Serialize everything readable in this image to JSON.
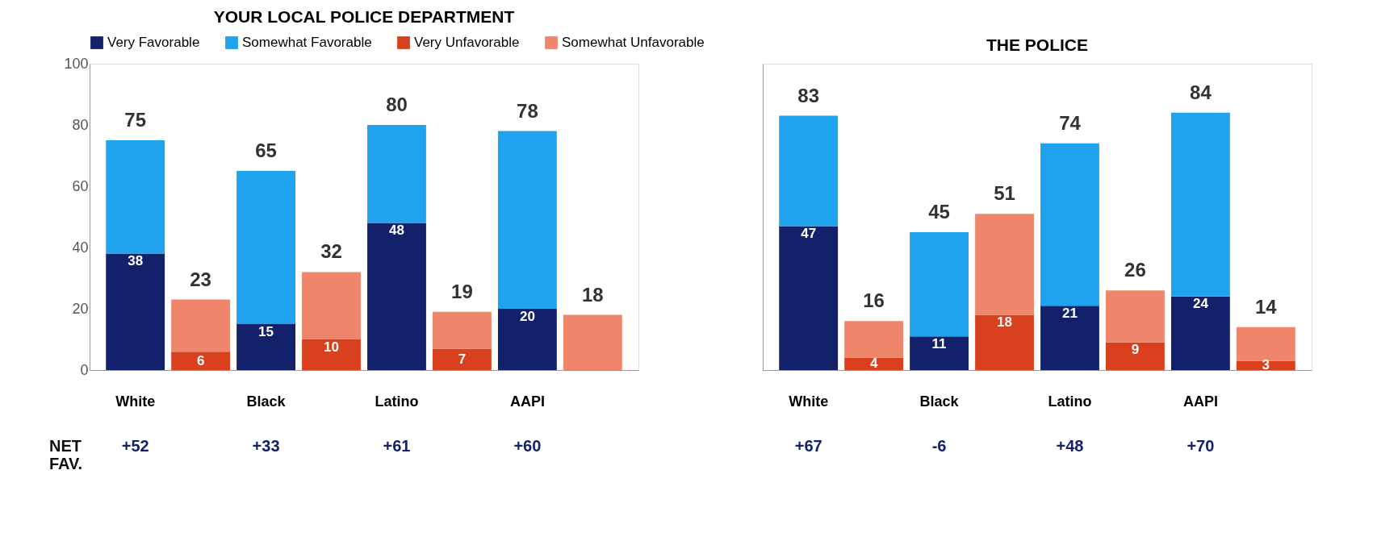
{
  "chart_data": [
    {
      "type": "bar",
      "title": "YOUR LOCAL POLICE DEPARTMENT",
      "stacked": true,
      "legend": "top",
      "categories": [
        "White",
        null,
        "Black",
        null,
        "Latino",
        null,
        "AAPI",
        null
      ],
      "ylim": [
        0,
        100
      ],
      "yticks": [
        0,
        20,
        40,
        60,
        80,
        100
      ],
      "series": [
        {
          "name": "Very Favorable",
          "color": "#13216a",
          "values": [
            38,
            null,
            15,
            null,
            48,
            null,
            20,
            null
          ],
          "value_labels": [
            "38",
            null,
            "15",
            null,
            "48",
            null,
            "20",
            null
          ]
        },
        {
          "name": "Somewhat Favorable",
          "color": "#1fa3ef",
          "values": [
            37,
            null,
            50,
            null,
            32,
            null,
            58,
            null
          ]
        },
        {
          "name": "Very Unfavorable",
          "color": "#d9411e",
          "values": [
            null,
            6,
            null,
            10,
            null,
            7,
            null,
            null
          ],
          "value_labels": [
            null,
            "6",
            null,
            "10",
            null,
            "7",
            null,
            null
          ]
        },
        {
          "name": "Somewhat Unfavorable",
          "color": "#ef866c",
          "values": [
            null,
            17,
            null,
            22,
            null,
            12,
            null,
            18
          ]
        }
      ],
      "totals": [
        "75",
        "23",
        "65",
        "32",
        "80",
        "19",
        "78",
        "18"
      ],
      "annotations": [
        "NET FAV.",
        "+52",
        "+33",
        "+61",
        "+60"
      ]
    },
    {
      "type": "bar",
      "title": "THE POLICE",
      "stacked": true,
      "tick_labels": "x",
      "categories": [
        "White",
        null,
        "Black",
        null,
        "Latino",
        null,
        "AAPI",
        null
      ],
      "ylim": [
        0,
        100
      ],
      "yticks": [
        0,
        20,
        40,
        60,
        80,
        100
      ],
      "series": [
        {
          "color": "#13216a",
          "values": [
            47,
            null,
            11,
            null,
            21,
            null,
            24,
            null
          ],
          "value_labels": [
            "47",
            null,
            "11",
            null,
            "21",
            null,
            "24",
            null
          ]
        },
        {
          "color": "#1fa3ef",
          "values": [
            36,
            null,
            34,
            null,
            53,
            null,
            60,
            null
          ]
        },
        {
          "color": "#d9411e",
          "values": [
            null,
            4,
            null,
            18,
            null,
            9,
            null,
            3
          ],
          "value_labels": [
            null,
            "4",
            null,
            "18",
            null,
            "9",
            null,
            "3"
          ]
        },
        {
          "color": "#ef866c",
          "values": [
            null,
            12,
            null,
            33,
            null,
            17,
            null,
            11
          ]
        }
      ],
      "totals": [
        "83",
        "16",
        "45",
        "51",
        "74",
        "26",
        "84",
        "14"
      ],
      "annotations": [
        "+67",
        "-6",
        "+48",
        "+70"
      ]
    }
  ]
}
